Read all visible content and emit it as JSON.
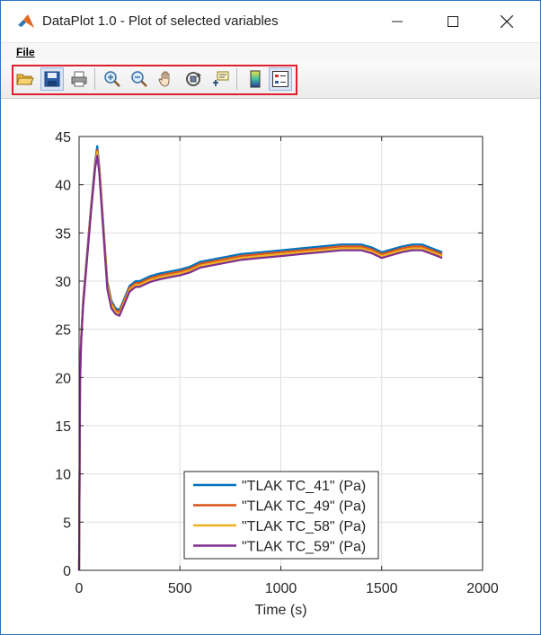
{
  "window": {
    "title": "DataPlot 1.0 - Plot of selected variables",
    "icon": "matlab-logo-icon",
    "controls": [
      "minimize-icon",
      "maximize-icon",
      "close-icon"
    ]
  },
  "menu": {
    "items": [
      {
        "label": "File"
      }
    ]
  },
  "toolbar": {
    "highlight_color": "#e0202e",
    "buttons": [
      {
        "icon": "open-folder-icon"
      },
      {
        "icon": "save-icon"
      },
      {
        "icon": "print-icon"
      },
      {
        "icon": "zoom-in-icon"
      },
      {
        "icon": "zoom-out-icon"
      },
      {
        "icon": "pan-hand-icon"
      },
      {
        "icon": "rotate-3d-icon"
      },
      {
        "icon": "data-cursor-icon"
      },
      {
        "icon": "colorbar-icon"
      },
      {
        "icon": "legend-icon"
      }
    ]
  },
  "chart_data": {
    "type": "line",
    "title": "",
    "xlabel": "Time (s)",
    "ylabel": "",
    "xlim": [
      0,
      2000
    ],
    "ylim": [
      0,
      45
    ],
    "xticks": [
      "0",
      "500",
      "1000",
      "1500",
      "2000"
    ],
    "yticks": [
      "0",
      "5",
      "10",
      "15",
      "20",
      "25",
      "30",
      "35",
      "40",
      "45"
    ],
    "grid": true,
    "legend_position": "bottom-center",
    "x": [
      0,
      5,
      10,
      20,
      40,
      60,
      80,
      90,
      100,
      120,
      140,
      160,
      180,
      200,
      220,
      250,
      280,
      300,
      350,
      400,
      450,
      500,
      550,
      600,
      700,
      800,
      900,
      1000,
      1100,
      1200,
      1300,
      1400,
      1450,
      1500,
      1550,
      1600,
      1650,
      1700,
      1750,
      1800
    ],
    "series": [
      {
        "name": "\"TLAK TC_41\" (Pa)",
        "color": "#0072bd",
        "values": [
          0,
          20,
          24,
          28,
          33,
          38,
          42.5,
          44,
          42,
          36,
          30,
          28,
          27.2,
          27,
          28,
          29.5,
          30,
          30,
          30.5,
          30.8,
          31,
          31.2,
          31.5,
          32,
          32.4,
          32.8,
          33,
          33.2,
          33.4,
          33.6,
          33.8,
          33.8,
          33.5,
          33,
          33.3,
          33.6,
          33.8,
          33.8,
          33.4,
          33
        ]
      },
      {
        "name": "\"TLAK TC_49\" (Pa)",
        "color": "#d95319",
        "values": [
          0,
          19.8,
          23.8,
          27.8,
          32.8,
          37.8,
          42.2,
          43.6,
          41.8,
          35.8,
          29.8,
          27.8,
          27.0,
          26.8,
          27.8,
          29.3,
          29.8,
          29.8,
          30.3,
          30.6,
          30.8,
          31.0,
          31.3,
          31.8,
          32.2,
          32.6,
          32.8,
          33.0,
          33.2,
          33.4,
          33.6,
          33.6,
          33.3,
          32.8,
          33.1,
          33.4,
          33.6,
          33.6,
          33.2,
          32.8
        ]
      },
      {
        "name": "\"TLAK TC_58\" (Pa)",
        "color": "#edb120",
        "values": [
          0,
          19.6,
          23.6,
          27.6,
          32.6,
          37.6,
          42.0,
          43.4,
          41.6,
          35.6,
          29.6,
          27.6,
          26.8,
          26.6,
          27.6,
          29.1,
          29.6,
          29.6,
          30.1,
          30.4,
          30.6,
          30.8,
          31.1,
          31.6,
          32.0,
          32.4,
          32.6,
          32.8,
          33.0,
          33.2,
          33.4,
          33.4,
          33.1,
          32.6,
          32.9,
          33.2,
          33.4,
          33.4,
          33.0,
          32.6
        ]
      },
      {
        "name": "\"TLAK TC_59\" (Pa)",
        "color": "#7e2f8e",
        "values": [
          0,
          19.4,
          23.4,
          27.4,
          32.4,
          37.4,
          41.8,
          43.0,
          41.2,
          35.2,
          29.2,
          27.2,
          26.6,
          26.4,
          27.4,
          28.9,
          29.4,
          29.4,
          29.9,
          30.2,
          30.4,
          30.6,
          30.9,
          31.4,
          31.8,
          32.2,
          32.4,
          32.6,
          32.8,
          33.0,
          33.2,
          33.2,
          32.9,
          32.4,
          32.7,
          33.0,
          33.2,
          33.2,
          32.8,
          32.4
        ]
      }
    ]
  }
}
